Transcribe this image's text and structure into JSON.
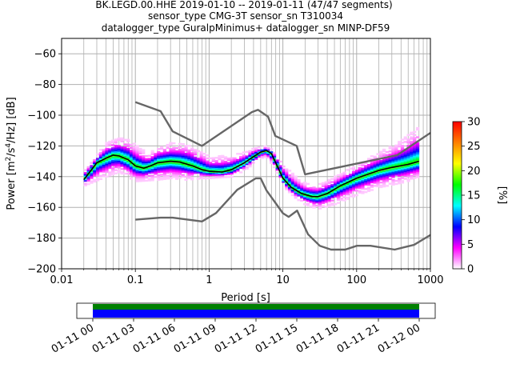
{
  "chart_data": {
    "type": "heatmap",
    "title_lines": [
      "BK.LEGD.00.HHE   2019-01-10 -- 2019-01-11  (47/47 segments)",
      "sensor_type CMG-3T sensor_sn T310034",
      "datalogger_type GuralpMinimus+ datalogger_sn MINP-DF59"
    ],
    "xlabel": "Period [s]",
    "ylabel_parts": {
      "main": "Power [m",
      "sup1": "2",
      "mid": "/s",
      "sup2": "4",
      "end": "/Hz] [dB]"
    },
    "x_scale": "log",
    "xlim": [
      0.01,
      1000
    ],
    "ylim": [
      -200,
      -50
    ],
    "x_ticks": [
      {
        "value": 0.01,
        "label": "0.01"
      },
      {
        "value": 0.1,
        "label": "0.1"
      },
      {
        "value": 1,
        "label": "1"
      },
      {
        "value": 10,
        "label": "10"
      },
      {
        "value": 100,
        "label": "100"
      },
      {
        "value": 1000,
        "label": "1000"
      }
    ],
    "y_ticks": [
      {
        "value": -60,
        "label": "−60"
      },
      {
        "value": -80,
        "label": "−80"
      },
      {
        "value": -100,
        "label": "−100"
      },
      {
        "value": -120,
        "label": "−120"
      },
      {
        "value": -140,
        "label": "−140"
      },
      {
        "value": -160,
        "label": "−160"
      },
      {
        "value": -180,
        "label": "−180"
      },
      {
        "value": -200,
        "label": "−200"
      }
    ],
    "grid": true,
    "colorbar": {
      "label": "[%]",
      "range": [
        0,
        30
      ],
      "ticks": [
        {
          "value": 0,
          "label": "0"
        },
        {
          "value": 5,
          "label": "5"
        },
        {
          "value": 10,
          "label": "10"
        },
        {
          "value": 15,
          "label": "15"
        },
        {
          "value": 20,
          "label": "20"
        },
        {
          "value": 25,
          "label": "25"
        },
        {
          "value": 30,
          "label": "30"
        }
      ],
      "colors": [
        "#ffffff",
        "#ff00ff",
        "#0000ff",
        "#00ffff",
        "#00ff00",
        "#ffff00",
        "#ff8000",
        "#ff0000"
      ]
    },
    "nhnm": [
      [
        0.1,
        -168
      ],
      [
        0.22,
        -166.7
      ],
      [
        0.32,
        -166.7
      ],
      [
        0.8,
        -169.2
      ],
      [
        1.24,
        -163.7
      ],
      [
        2.4,
        -148.6
      ],
      [
        4.3,
        -141.1
      ],
      [
        5,
        -141.1
      ],
      [
        6,
        -149
      ],
      [
        10,
        -163.8
      ],
      [
        12,
        -166.2
      ],
      [
        15.6,
        -162.1
      ],
      [
        21.9,
        -177.5
      ],
      [
        31.6,
        -185
      ],
      [
        45,
        -187.5
      ],
      [
        70,
        -187.5
      ],
      [
        101,
        -185
      ],
      [
        154,
        -185
      ],
      [
        328,
        -187.5
      ],
      [
        600,
        -184.4
      ],
      [
        1000,
        -178
      ]
    ],
    "nlnm": [
      [
        0.1,
        -91.5
      ],
      [
        0.22,
        -97.4
      ],
      [
        0.32,
        -110.5
      ],
      [
        0.8,
        -120
      ],
      [
        3.8,
        -98
      ],
      [
        4.6,
        -96.5
      ],
      [
        6.3,
        -101
      ],
      [
        7.9,
        -113.5
      ],
      [
        15.4,
        -120
      ],
      [
        20,
        -138.5
      ],
      [
        354.8,
        -126
      ],
      [
        1000,
        -111.5
      ]
    ],
    "mode_curve": [
      [
        0.02,
        -142
      ],
      [
        0.025,
        -136
      ],
      [
        0.03,
        -131
      ],
      [
        0.04,
        -128
      ],
      [
        0.05,
        -126
      ],
      [
        0.06,
        -126.5
      ],
      [
        0.08,
        -129
      ],
      [
        0.1,
        -133
      ],
      [
        0.13,
        -134.5
      ],
      [
        0.16,
        -133
      ],
      [
        0.2,
        -131
      ],
      [
        0.3,
        -130
      ],
      [
        0.4,
        -130.5
      ],
      [
        0.6,
        -133
      ],
      [
        0.8,
        -135.5
      ],
      [
        1,
        -136.5
      ],
      [
        1.5,
        -137
      ],
      [
        2,
        -135.5
      ],
      [
        3,
        -131
      ],
      [
        4,
        -127
      ],
      [
        5,
        -124
      ],
      [
        6,
        -123
      ],
      [
        7,
        -125
      ],
      [
        8,
        -131
      ],
      [
        10,
        -141
      ],
      [
        13,
        -147
      ],
      [
        18,
        -151
      ],
      [
        25,
        -153
      ],
      [
        30,
        -153
      ],
      [
        40,
        -151
      ],
      [
        60,
        -146
      ],
      [
        100,
        -141
      ],
      [
        200,
        -136
      ],
      [
        300,
        -134
      ],
      [
        500,
        -132
      ],
      [
        700,
        -130
      ]
    ],
    "spread_upper": [
      [
        0.02,
        -136
      ],
      [
        0.04,
        -118
      ],
      [
        0.06,
        -114
      ],
      [
        0.08,
        -115
      ],
      [
        0.1,
        -119
      ],
      [
        0.15,
        -125
      ],
      [
        0.2,
        -120
      ],
      [
        0.3,
        -118
      ],
      [
        0.5,
        -118
      ],
      [
        0.8,
        -123
      ],
      [
        1,
        -127
      ],
      [
        2,
        -126
      ],
      [
        3,
        -124
      ],
      [
        4,
        -121
      ],
      [
        6,
        -120
      ],
      [
        8,
        -124
      ],
      [
        10,
        -131
      ],
      [
        15,
        -140
      ],
      [
        20,
        -144
      ],
      [
        30,
        -145
      ],
      [
        50,
        -140
      ],
      [
        100,
        -132
      ],
      [
        200,
        -124
      ],
      [
        400,
        -116
      ],
      [
        700,
        -107
      ]
    ],
    "spread_lower": [
      [
        0.02,
        -146
      ],
      [
        0.04,
        -140
      ],
      [
        0.06,
        -137
      ],
      [
        0.08,
        -140
      ],
      [
        0.1,
        -143
      ],
      [
        0.2,
        -142
      ],
      [
        0.3,
        -141
      ],
      [
        0.5,
        -142
      ],
      [
        0.8,
        -141
      ],
      [
        1,
        -141
      ],
      [
        2,
        -140
      ],
      [
        3,
        -136
      ],
      [
        5,
        -128
      ],
      [
        6,
        -127
      ],
      [
        8,
        -135
      ],
      [
        10,
        -146
      ],
      [
        15,
        -154
      ],
      [
        20,
        -158
      ],
      [
        30,
        -161
      ],
      [
        50,
        -158
      ],
      [
        100,
        -152
      ],
      [
        200,
        -147
      ],
      [
        400,
        -144
      ],
      [
        700,
        -141
      ]
    ],
    "timeline": {
      "ticks": [
        "01-11 00",
        "01-11 03",
        "01-11 06",
        "01-11 09",
        "01-11 12",
        "01-11 15",
        "01-11 18",
        "01-11 21",
        "01-12 00"
      ],
      "data_color": "#0000ff",
      "processed_color": "#008000",
      "coverage": [
        0.0,
        1.0
      ]
    }
  }
}
